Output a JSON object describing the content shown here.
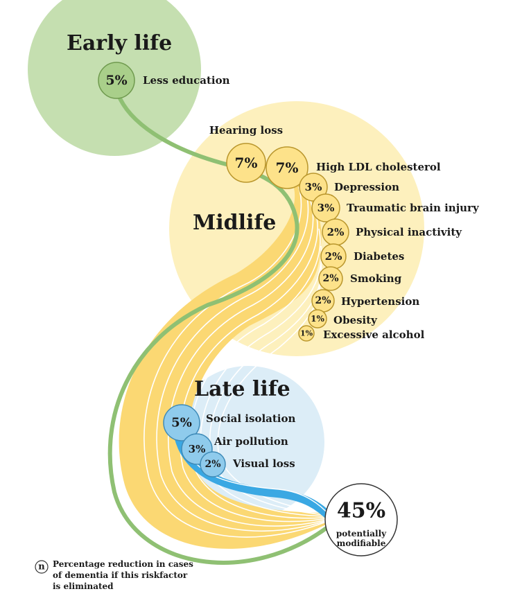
{
  "stages": {
    "early": {
      "title": "Early life",
      "color": "#c5dfb0"
    },
    "mid": {
      "title": "Midlife",
      "color": "#fdf0bd"
    },
    "late": {
      "title": "Late life",
      "color": "#dcedf7"
    }
  },
  "factors": [
    {
      "id": "less-education",
      "stage": "early",
      "pct": "5%",
      "label": "Less education"
    },
    {
      "id": "hearing-loss",
      "stage": "mid",
      "pct": "7%",
      "label": "Hearing loss"
    },
    {
      "id": "high-ldl-cholesterol",
      "stage": "mid",
      "pct": "7%",
      "label": "High LDL cholesterol"
    },
    {
      "id": "depression",
      "stage": "mid",
      "pct": "3%",
      "label": "Depression"
    },
    {
      "id": "traumatic-brain-injury",
      "stage": "mid",
      "pct": "3%",
      "label": "Traumatic brain injury"
    },
    {
      "id": "physical-inactivity",
      "stage": "mid",
      "pct": "2%",
      "label": "Physical inactivity"
    },
    {
      "id": "diabetes",
      "stage": "mid",
      "pct": "2%",
      "label": "Diabetes"
    },
    {
      "id": "smoking",
      "stage": "mid",
      "pct": "2%",
      "label": "Smoking"
    },
    {
      "id": "hypertension",
      "stage": "mid",
      "pct": "2%",
      "label": "Hypertension"
    },
    {
      "id": "obesity",
      "stage": "mid",
      "pct": "1%",
      "label": "Obesity"
    },
    {
      "id": "excessive-alcohol",
      "stage": "mid",
      "pct": "1%",
      "label": "Excessive alcohol"
    },
    {
      "id": "social-isolation",
      "stage": "late",
      "pct": "5%",
      "label": "Social isolation"
    },
    {
      "id": "air-pollution",
      "stage": "late",
      "pct": "3%",
      "label": "Air pollution"
    },
    {
      "id": "visual-loss",
      "stage": "late",
      "pct": "2%",
      "label": "Visual loss"
    }
  ],
  "total": {
    "pct": "45%",
    "line1": "potentially",
    "line2": "modifiable"
  },
  "legend": {
    "symbol": "n",
    "lines": [
      "Percentage reduction in cases",
      "of dementia if this riskfactor",
      "is eliminated"
    ]
  },
  "colors": {
    "early_circle": "#a9cf8a",
    "early_stroke": "#6f9a4e",
    "early_band": "#8fc073",
    "mid_circle": "#fde28a",
    "mid_stroke": "#b9962c",
    "mid_band": "#fbd873",
    "late_circle": "#8fcbec",
    "late_stroke": "#3f8bb8",
    "late_band": "#3aa8e3",
    "total_stroke": "#333333"
  }
}
